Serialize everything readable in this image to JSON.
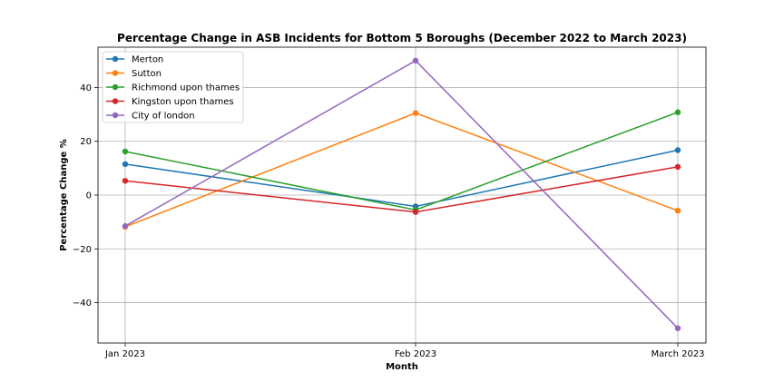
{
  "chart_data": {
    "type": "line",
    "title": "Percentage Change in ASB Incidents for Bottom 5 Boroughs (December 2022 to March 2023)",
    "xlabel": "Month",
    "ylabel": "Percentage Change %",
    "categories": [
      "Jan 2023",
      "Feb 2023",
      "March 2023"
    ],
    "ylim": [
      -55,
      55
    ],
    "yticks": [
      -40,
      -20,
      0,
      20,
      40
    ],
    "ytick_labels": [
      "−40",
      "−20",
      "0",
      "20",
      "40"
    ],
    "grid": true,
    "legend_position": "top-left",
    "series": [
      {
        "name": "Merton",
        "color": "#1f77b4",
        "values": [
          11.5,
          -4.2,
          16.7
        ]
      },
      {
        "name": "Sutton",
        "color": "#ff7f0e",
        "values": [
          -11.8,
          30.5,
          -5.8
        ]
      },
      {
        "name": "Richmond upon thames",
        "color": "#2ca02c",
        "values": [
          16.2,
          -5.5,
          30.8
        ]
      },
      {
        "name": "Kingston upon thames",
        "color": "#d62728",
        "values": [
          5.3,
          -6.3,
          10.5
        ]
      },
      {
        "name": "City of london",
        "color": "#9467bd",
        "values": [
          -11.5,
          50.0,
          -49.5
        ]
      }
    ]
  }
}
